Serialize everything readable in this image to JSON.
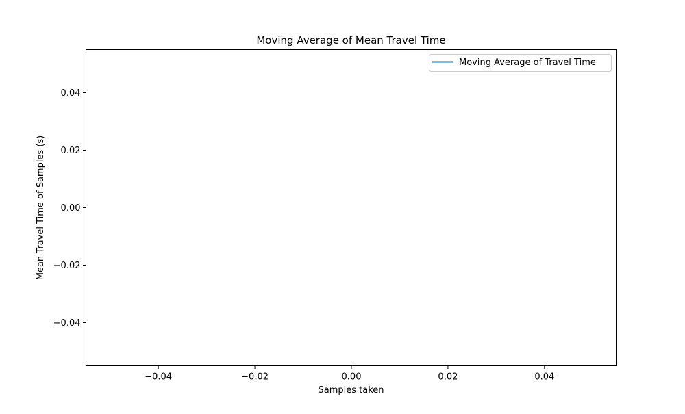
{
  "chart_data": {
    "type": "line",
    "title": "Moving Average of Mean Travel Time",
    "xlabel": "Samples taken",
    "ylabel": "Mean Travel Time of Samples (s)",
    "xlim": [
      -0.055,
      0.055
    ],
    "ylim": [
      -0.055,
      0.055
    ],
    "xticks": [
      -0.04,
      -0.02,
      0.0,
      0.02,
      0.04
    ],
    "xtick_labels": [
      "−0.04",
      "−0.02",
      "0.00",
      "0.02",
      "0.04"
    ],
    "yticks": [
      -0.04,
      -0.02,
      0.0,
      0.02,
      0.04
    ],
    "ytick_labels": [
      "−0.04",
      "−0.02",
      "0.00",
      "0.02",
      "0.04"
    ],
    "grid": false,
    "legend_position": "top-right",
    "series": [
      {
        "name": "Moving Average of Travel Time",
        "color": "#1f77b4",
        "x": [],
        "y": []
      }
    ]
  }
}
